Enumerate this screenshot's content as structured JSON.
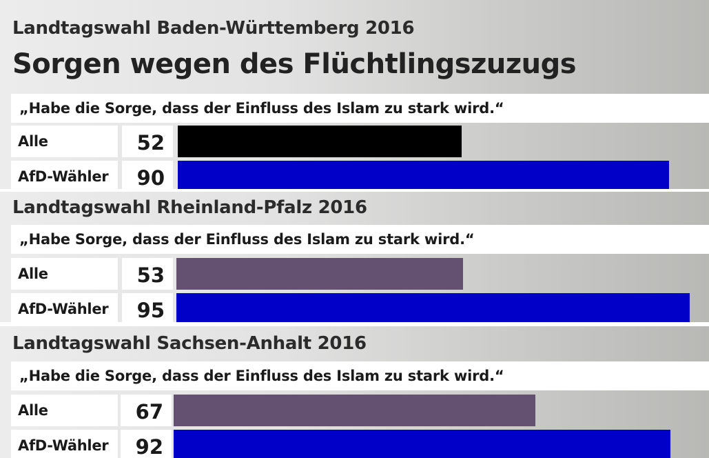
{
  "main_title": "Sorgen wegen des Flüchtlingszuzugs",
  "chart_data": [
    {
      "type": "bar",
      "title": "Landtagswahl Baden-Württemberg 2016",
      "subtitle": "„Habe die Sorge, dass der Einfluss des Islam zu stark wird.“",
      "categories": [
        "Alle",
        "AfD-Wähler"
      ],
      "values": [
        52,
        90
      ],
      "colors": [
        "#000000",
        "#0000c8"
      ]
    },
    {
      "type": "bar",
      "title": "Landtagswahl Rheinland-Pfalz 2016",
      "subtitle": "„Habe Sorge, dass der Einfluss des Islam zu stark wird.“",
      "categories": [
        "Alle",
        "AfD-Wähler"
      ],
      "values": [
        53,
        95
      ],
      "colors": [
        "#645070",
        "#0000c8"
      ]
    },
    {
      "type": "bar",
      "title": "Landtagswahl Sachsen-Anhalt 2016",
      "subtitle": "„Habe die Sorge, dass der Einfluss des Islam zu stark wird.“",
      "categories": [
        "Alle",
        "AfD-Wähler"
      ],
      "values": [
        67,
        92
      ],
      "colors": [
        "#645070",
        "#0000c8"
      ]
    }
  ]
}
